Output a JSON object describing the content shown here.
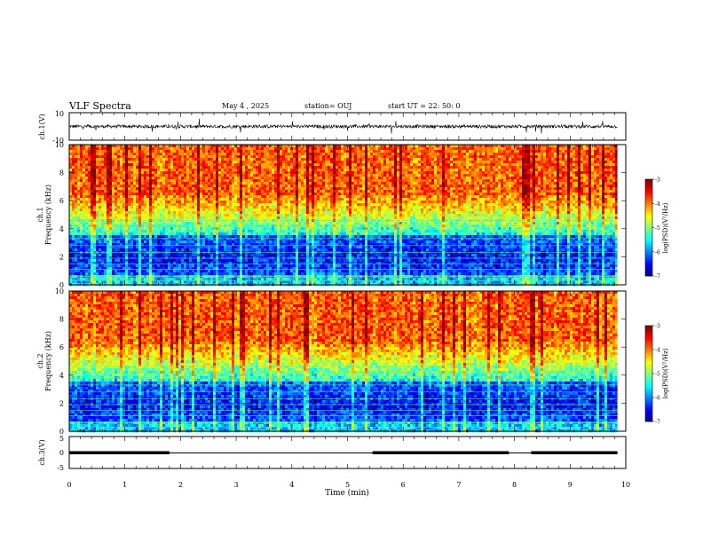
{
  "header": {
    "title": "VLF Spectra",
    "date": "May 4 , 2025",
    "station": "station= OUJ",
    "start_ut": "start UT =  22: 50: 0"
  },
  "chart_data": [
    {
      "type": "line",
      "name": "ch1-waveform",
      "ylabel": "ch.1(V)",
      "ylim": [
        -10,
        10
      ],
      "yticks": [
        "10",
        "-10"
      ],
      "x_range_min": [
        0,
        9.85
      ],
      "description_level_v": 0,
      "noise_amplitude_v": 1.5
    },
    {
      "type": "heatmap",
      "name": "ch1-spectrogram",
      "ylabel": "ch.1\nFrequency (kHz)",
      "ylim": [
        0,
        10
      ],
      "yticks": [
        "0",
        "2",
        "4",
        "6",
        "8",
        "10"
      ],
      "x_range_min": [
        0,
        9.85
      ],
      "colorbar": {
        "label": "log(PSD)(V²/Hz)",
        "range": [
          -7,
          -3
        ],
        "ticks": [
          "-3",
          "-4",
          "-5",
          "-6",
          "-7"
        ]
      }
    },
    {
      "type": "heatmap",
      "name": "ch2-spectrogram",
      "ylabel": "ch.2\nFrequency (kHz)",
      "ylim": [
        0,
        10
      ],
      "yticks": [
        "0",
        "2",
        "4",
        "6",
        "8",
        "10"
      ],
      "x_range_min": [
        0,
        9.85
      ],
      "colorbar": {
        "label": "log(PSD)(V²/Hz)",
        "range": [
          -7,
          -3
        ],
        "ticks": [
          "-3",
          "-4",
          "-5",
          "-6",
          "-7"
        ]
      }
    },
    {
      "type": "line",
      "name": "ch3-status",
      "ylabel": "ch.3(V)",
      "ylim": [
        -5,
        5
      ],
      "yticks": [
        "5",
        "0",
        "-5"
      ],
      "xlabel": "Time (min)",
      "xlim": [
        0,
        10
      ],
      "xticks": [
        "0",
        "1",
        "2",
        "3",
        "4",
        "5",
        "6",
        "7",
        "8",
        "9",
        "10"
      ],
      "segments": [
        {
          "x": [
            0,
            1.8
          ],
          "y": 0
        },
        {
          "x": [
            5.45,
            7.9
          ],
          "y": 0
        },
        {
          "x": [
            8.3,
            9.85
          ],
          "y": 0
        }
      ],
      "baseline_v": 0
    }
  ]
}
